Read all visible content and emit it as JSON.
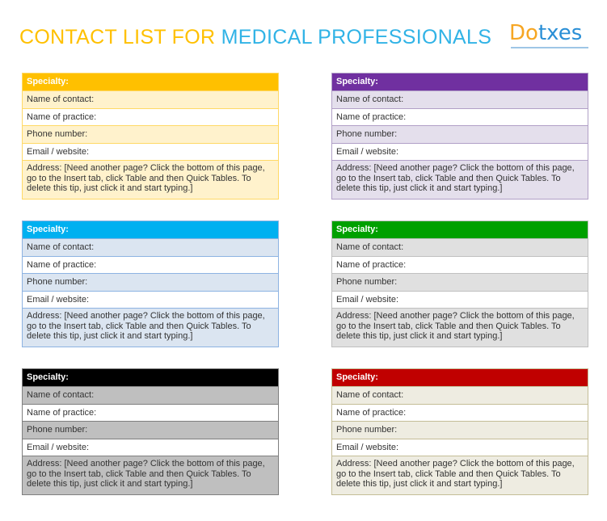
{
  "title": {
    "part1": "CONTACT LIST FOR",
    "part2": "MEDICAL PROFESSIONALS"
  },
  "logo": {
    "part1": "Do",
    "part2": "txes"
  },
  "cards": [
    {
      "header": "Specialty:",
      "rows": [
        "Name of contact:",
        "Name of practice:",
        "Phone number:",
        "Email / website:",
        "Address:  [Need another page? Click the bottom of this page, go to the Insert tab, click Table and then Quick Tables. To delete this tip, just click it and start typing.]"
      ]
    },
    {
      "header": "Specialty:",
      "rows": [
        "Name of contact:",
        "Name of practice:",
        "Phone number:",
        "Email / website:",
        "Address:  [Need another page? Click the bottom of this page, go to the Insert tab, click Table and then Quick Tables. To delete this tip, just click it and start typing.]"
      ]
    },
    {
      "header": "Specialty:",
      "rows": [
        "Name of contact:",
        "Name of practice:",
        "Phone number:",
        "Email / website:",
        "Address:  [Need another page? Click the bottom of this page, go to the Insert tab, click Table and then Quick Tables. To delete this tip, just click it and start typing.]"
      ]
    },
    {
      "header": "Specialty:",
      "rows": [
        "Name of contact:",
        "Name of practice:",
        "Phone number:",
        "Email / website:",
        "Address:  [Need another page? Click the bottom of this page, go to the Insert tab, click Table and then Quick Tables. To delete this tip, just click it and start typing.]"
      ]
    },
    {
      "header": "Specialty:",
      "rows": [
        "Name of contact:",
        "Name of practice:",
        "Phone number:",
        "Email / website:",
        "Address:  [Need another page? Click the bottom of this page, go to the Insert tab, click Table and then Quick Tables. To delete this tip, just click it and start typing.]"
      ]
    },
    {
      "header": "Specialty:",
      "rows": [
        "Name of contact:",
        "Name of practice:",
        "Phone number:",
        "Email / website:",
        "Address:  [Need another page? Click the bottom of this page, go to the Insert tab, click Table and then Quick Tables. To delete this tip, just click it and start typing.]"
      ]
    }
  ]
}
